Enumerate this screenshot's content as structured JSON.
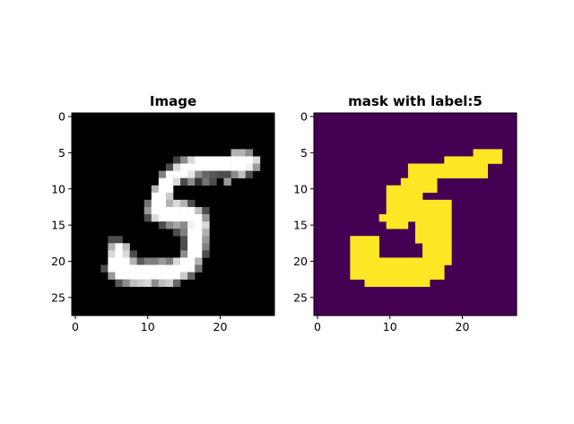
{
  "chart_data": [
    {
      "type": "heatmap",
      "title": "Image",
      "colormap": "gray",
      "shape": [
        28,
        28
      ],
      "xticks": [
        0,
        10,
        20
      ],
      "yticks": [
        0,
        5,
        10,
        15,
        20,
        25
      ],
      "cells": [
        [
          5,
          22,
          0.7
        ],
        [
          5,
          23,
          0.7
        ],
        [
          5,
          24,
          0.55
        ],
        [
          6,
          14,
          0.25
        ],
        [
          6,
          15,
          0.55
        ],
        [
          6,
          16,
          0.85
        ],
        [
          6,
          17,
          1
        ],
        [
          6,
          18,
          1
        ],
        [
          6,
          19,
          1
        ],
        [
          6,
          20,
          1
        ],
        [
          6,
          21,
          1
        ],
        [
          6,
          22,
          1
        ],
        [
          6,
          23,
          1
        ],
        [
          6,
          24,
          1
        ],
        [
          6,
          25,
          0.85
        ],
        [
          7,
          13,
          0.3
        ],
        [
          7,
          14,
          0.85
        ],
        [
          7,
          15,
          1
        ],
        [
          7,
          16,
          1
        ],
        [
          7,
          17,
          1
        ],
        [
          7,
          18,
          1
        ],
        [
          7,
          19,
          1
        ],
        [
          7,
          20,
          1
        ],
        [
          7,
          21,
          1
        ],
        [
          7,
          22,
          1
        ],
        [
          7,
          23,
          1
        ],
        [
          7,
          24,
          0.95
        ],
        [
          7,
          25,
          0.6
        ],
        [
          8,
          12,
          0.5
        ],
        [
          8,
          13,
          1
        ],
        [
          8,
          14,
          1
        ],
        [
          8,
          15,
          1
        ],
        [
          8,
          16,
          0.9
        ],
        [
          8,
          17,
          0.55
        ],
        [
          8,
          18,
          0.4
        ],
        [
          8,
          19,
          0.35
        ],
        [
          8,
          20,
          0.3
        ],
        [
          8,
          21,
          0.3
        ],
        [
          8,
          22,
          0.55
        ],
        [
          8,
          23,
          0.75
        ],
        [
          8,
          24,
          0.3
        ],
        [
          9,
          12,
          1
        ],
        [
          9,
          13,
          1
        ],
        [
          9,
          14,
          0.85
        ],
        [
          9,
          15,
          0.3
        ],
        [
          9,
          16,
          0.55
        ],
        [
          9,
          17,
          0.2
        ],
        [
          9,
          18,
          0.45
        ],
        [
          9,
          19,
          0.3
        ],
        [
          9,
          21,
          0.6
        ],
        [
          10,
          11,
          0.7
        ],
        [
          10,
          12,
          1
        ],
        [
          10,
          13,
          1
        ],
        [
          11,
          11,
          1
        ],
        [
          11,
          12,
          1
        ],
        [
          11,
          13,
          0.8
        ],
        [
          12,
          10,
          0.45
        ],
        [
          12,
          11,
          1
        ],
        [
          12,
          12,
          1
        ],
        [
          12,
          13,
          0.7
        ],
        [
          12,
          14,
          0.85
        ],
        [
          12,
          15,
          0.7
        ],
        [
          12,
          16,
          0.3
        ],
        [
          13,
          10,
          0.6
        ],
        [
          13,
          11,
          1
        ],
        [
          13,
          12,
          1
        ],
        [
          13,
          13,
          1
        ],
        [
          13,
          14,
          1
        ],
        [
          13,
          15,
          1
        ],
        [
          13,
          16,
          1
        ],
        [
          13,
          17,
          0.75
        ],
        [
          13,
          18,
          0.3
        ],
        [
          14,
          10,
          0.3
        ],
        [
          14,
          11,
          0.85
        ],
        [
          14,
          12,
          1
        ],
        [
          14,
          13,
          1
        ],
        [
          14,
          14,
          1
        ],
        [
          14,
          15,
          1
        ],
        [
          14,
          16,
          1
        ],
        [
          14,
          17,
          1
        ],
        [
          14,
          18,
          0.6
        ],
        [
          15,
          12,
          0.3
        ],
        [
          15,
          13,
          0.55
        ],
        [
          15,
          14,
          0.65
        ],
        [
          15,
          15,
          0.55
        ],
        [
          15,
          16,
          0.95
        ],
        [
          15,
          17,
          1
        ],
        [
          15,
          18,
          0.85
        ],
        [
          16,
          14,
          0.3
        ],
        [
          16,
          15,
          0.5
        ],
        [
          16,
          16,
          1
        ],
        [
          16,
          17,
          1
        ],
        [
          16,
          18,
          0.7
        ],
        [
          17,
          5,
          0.3
        ],
        [
          17,
          6,
          0.3
        ],
        [
          17,
          15,
          0.3
        ],
        [
          17,
          16,
          1
        ],
        [
          17,
          17,
          1
        ],
        [
          17,
          18,
          0.6
        ],
        [
          18,
          5,
          0.7
        ],
        [
          18,
          6,
          1
        ],
        [
          18,
          7,
          0.75
        ],
        [
          18,
          15,
          0.3
        ],
        [
          18,
          16,
          1
        ],
        [
          18,
          17,
          1
        ],
        [
          18,
          18,
          0.5
        ],
        [
          19,
          5,
          0.85
        ],
        [
          19,
          6,
          1
        ],
        [
          19,
          7,
          0.85
        ],
        [
          19,
          8,
          0.3
        ],
        [
          19,
          15,
          0.55
        ],
        [
          19,
          16,
          1
        ],
        [
          19,
          17,
          1
        ],
        [
          19,
          18,
          0.3
        ],
        [
          20,
          5,
          1
        ],
        [
          20,
          6,
          1
        ],
        [
          20,
          7,
          1
        ],
        [
          20,
          8,
          0.7
        ],
        [
          20,
          9,
          0.35
        ],
        [
          20,
          10,
          0.5
        ],
        [
          20,
          11,
          0.5
        ],
        [
          20,
          12,
          0.6
        ],
        [
          20,
          13,
          0.5
        ],
        [
          20,
          14,
          0.85
        ],
        [
          20,
          15,
          1
        ],
        [
          20,
          16,
          1
        ],
        [
          20,
          17,
          0.7
        ],
        [
          21,
          4,
          0.3
        ],
        [
          21,
          5,
          1
        ],
        [
          21,
          6,
          1
        ],
        [
          21,
          7,
          1
        ],
        [
          21,
          8,
          1
        ],
        [
          21,
          9,
          1
        ],
        [
          21,
          10,
          1
        ],
        [
          21,
          11,
          1
        ],
        [
          21,
          12,
          1
        ],
        [
          21,
          13,
          1
        ],
        [
          21,
          14,
          1
        ],
        [
          21,
          15,
          1
        ],
        [
          21,
          16,
          1
        ],
        [
          21,
          17,
          0.45
        ],
        [
          22,
          5,
          0.6
        ],
        [
          22,
          6,
          1
        ],
        [
          22,
          7,
          1
        ],
        [
          22,
          8,
          1
        ],
        [
          22,
          9,
          1
        ],
        [
          22,
          10,
          1
        ],
        [
          22,
          11,
          1
        ],
        [
          22,
          12,
          1
        ],
        [
          22,
          13,
          1
        ],
        [
          22,
          14,
          1
        ],
        [
          22,
          15,
          0.8
        ],
        [
          22,
          16,
          0.4
        ],
        [
          23,
          6,
          0.35
        ],
        [
          23,
          7,
          0.55
        ],
        [
          23,
          8,
          0.75
        ],
        [
          23,
          9,
          0.8
        ],
        [
          23,
          10,
          0.85
        ],
        [
          23,
          11,
          0.55
        ],
        [
          23,
          12,
          0.75
        ],
        [
          23,
          13,
          0.8
        ],
        [
          23,
          14,
          0.4
        ]
      ]
    },
    {
      "type": "heatmap",
      "title": "mask with label:5",
      "colormap": "viridis",
      "shape": [
        28,
        28
      ],
      "background_color": "#440154",
      "foreground_color": "#fde725",
      "xticks": [
        0,
        10,
        20
      ],
      "yticks": [
        0,
        5,
        10,
        15,
        20,
        25
      ],
      "mask_runs": [
        [
          5,
          22,
          25
        ],
        [
          6,
          18,
          25
        ],
        [
          7,
          13,
          23
        ],
        [
          8,
          13,
          23
        ],
        [
          9,
          12,
          16
        ],
        [
          10,
          10,
          16
        ],
        [
          11,
          10,
          14
        ],
        [
          12,
          10,
          18
        ],
        [
          13,
          10,
          18
        ],
        [
          14,
          9,
          18
        ],
        [
          15,
          10,
          12
        ],
        [
          15,
          14,
          18
        ],
        [
          16,
          14,
          18
        ],
        [
          17,
          5,
          8
        ],
        [
          17,
          14,
          18
        ],
        [
          18,
          5,
          8
        ],
        [
          18,
          15,
          18
        ],
        [
          19,
          5,
          8
        ],
        [
          19,
          15,
          18
        ],
        [
          20,
          5,
          18
        ],
        [
          21,
          5,
          17
        ],
        [
          22,
          5,
          17
        ],
        [
          23,
          7,
          15
        ]
      ]
    }
  ]
}
